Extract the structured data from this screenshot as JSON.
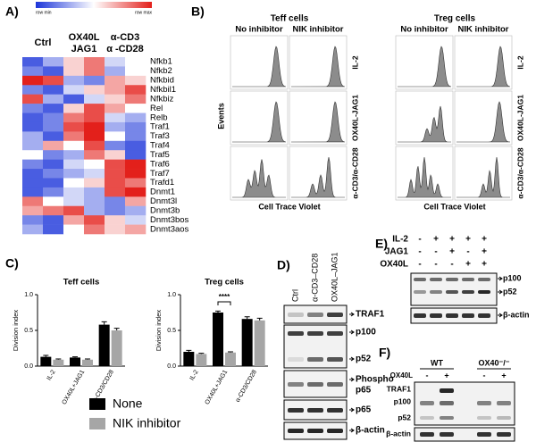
{
  "panel_labels": [
    "A)",
    "B)",
    "C)",
    "D)",
    "E)",
    "F)"
  ],
  "chart_data": [
    {
      "type": "heatmap",
      "scale_labels": [
        "row min",
        "row max"
      ],
      "colors": [
        "#1c35d9",
        "#ffffff",
        "#e3201b"
      ],
      "column_groups": [
        [
          "Ctrl"
        ],
        [
          "OX40L",
          "JAG1"
        ],
        [
          "α-CD3",
          "α -CD28"
        ]
      ],
      "rows": [
        "Nfkb1",
        "Nfkb2",
        "Nfkbid",
        "Nfkbil1",
        "Nfkbiz",
        "Rel",
        "Relb",
        "Traf1",
        "Traf3",
        "Traf4",
        "Traf5",
        "Traf6",
        "Traf7",
        "Trafd1",
        "Dnmt1",
        "Dnmt3l",
        "Dnmt3b",
        "Dnmt3bos",
        "Dnmt3aos"
      ],
      "values": [
        [
          0.1,
          0.3,
          0.6,
          0.8,
          0.4,
          0.5
        ],
        [
          0.2,
          0.1,
          0.6,
          0.8,
          0.3,
          0.5
        ],
        [
          1,
          0.9,
          0.3,
          0.2,
          0.7,
          0.6
        ],
        [
          0.2,
          0.1,
          0.4,
          0.6,
          0.7,
          0.9
        ],
        [
          0.9,
          0.3,
          0.1,
          0.4,
          0.6,
          0.8
        ],
        [
          0.2,
          0.1,
          0.6,
          0.9,
          0.7,
          0.5
        ],
        [
          0.1,
          0.2,
          0.8,
          0.9,
          0.4,
          0.3
        ],
        [
          0.1,
          0.2,
          0.9,
          1,
          0.3,
          0.2
        ],
        [
          0.3,
          0.1,
          0.8,
          1,
          0.5,
          0.2
        ],
        [
          0.3,
          0.7,
          0.5,
          0.9,
          0.2,
          0.1
        ],
        [
          0.5,
          0.2,
          0.3,
          0.8,
          0.6,
          0.1
        ],
        [
          0.2,
          0.1,
          0.4,
          0.5,
          0.9,
          1
        ],
        [
          0.1,
          0.2,
          0.3,
          0.4,
          0.9,
          1
        ],
        [
          0.1,
          0.1,
          0.5,
          0.6,
          0.9,
          0.8
        ],
        [
          0.1,
          0.2,
          0.4,
          0.3,
          0.9,
          1
        ],
        [
          0.8,
          0.5,
          0.4,
          0.3,
          0.2,
          0.7
        ],
        [
          0.7,
          0.8,
          0.9,
          0.3,
          0.2,
          0.3
        ],
        [
          0.2,
          0.1,
          0.7,
          0.9,
          0.6,
          0.4
        ],
        [
          0.3,
          0.1,
          0.5,
          0.8,
          0.6,
          0.7
        ]
      ]
    },
    {
      "type": "bar",
      "title": "Teff cells",
      "y_label": "Division index",
      "categories": [
        "IL-2",
        "OX40L+JAG1",
        "α-CD3/CD28"
      ],
      "ylim": [
        0,
        1
      ],
      "yticks": [
        {
          "value": 0,
          "label": "0.0"
        },
        {
          "value": 0.5,
          "label": "0.5"
        },
        {
          "value": 1,
          "label": "1.0"
        }
      ],
      "series": [
        {
          "name": "None",
          "color": "#000000",
          "values": [
            0.13,
            0.12,
            0.58
          ],
          "errors": [
            0.02,
            0.01,
            0.04
          ]
        },
        {
          "name": "NIK inhibitor",
          "color": "#a6a6a6",
          "values": [
            0.09,
            0.09,
            0.5
          ],
          "errors": [
            0.01,
            0.01,
            0.03
          ]
        }
      ]
    },
    {
      "type": "bar",
      "title": "Treg cells",
      "y_label": "Division index",
      "categories": [
        "IL-2",
        "OX40L+JAG1",
        "α-CD3/CD28"
      ],
      "ylim": [
        0,
        1
      ],
      "yticks": [
        {
          "value": 0,
          "label": "0.0"
        },
        {
          "value": 0.5,
          "label": "0.5"
        },
        {
          "value": 1,
          "label": "1.0"
        }
      ],
      "annotation": "****",
      "series": [
        {
          "name": "None",
          "color": "#000000",
          "values": [
            0.2,
            0.75,
            0.66
          ],
          "errors": [
            0.02,
            0.02,
            0.03
          ]
        },
        {
          "name": "NIK inhibitor",
          "color": "#a6a6a6",
          "values": [
            0.17,
            0.19,
            0.64
          ],
          "errors": [
            0.01,
            0.01,
            0.03
          ]
        }
      ]
    }
  ],
  "panel_b": {
    "groups": [
      "Teff cells",
      "Treg cells"
    ],
    "columns": [
      "No inhibitor",
      "NIK inhibitor"
    ],
    "rows": [
      "IL-2",
      "OX40L-JAG1",
      "α-CD3/α-CD28"
    ],
    "y_label": "Events",
    "x_label": "Cell Trace Violet"
  },
  "panel_d": {
    "lanes": [
      "Ctrl",
      "α-CD3–CD28",
      "OX40L–JAG1"
    ],
    "bands": [
      "TRAF1",
      "p100",
      "p52",
      "Phospho",
      "p65",
      "p65",
      "β-actin"
    ]
  },
  "panel_e": {
    "rows": [
      {
        "label": "IL-2",
        "signs": [
          "-",
          "+",
          "+",
          "+",
          "+"
        ]
      },
      {
        "label": "JAG1",
        "signs": [
          "-",
          "-",
          "+",
          "-",
          "+"
        ]
      },
      {
        "label": "OX40L",
        "signs": [
          "-",
          "-",
          "-",
          "+",
          "+"
        ]
      }
    ],
    "bands": [
      "p100",
      "p52",
      "β-actin"
    ]
  },
  "panel_f": {
    "groups": [
      "WT",
      "OX40⁻/⁻"
    ],
    "row_label": "OX40L",
    "signs": [
      "-",
      "+",
      "-",
      "+"
    ],
    "bands": [
      "TRAF1",
      "p100",
      "p52",
      "β-actin"
    ]
  }
}
